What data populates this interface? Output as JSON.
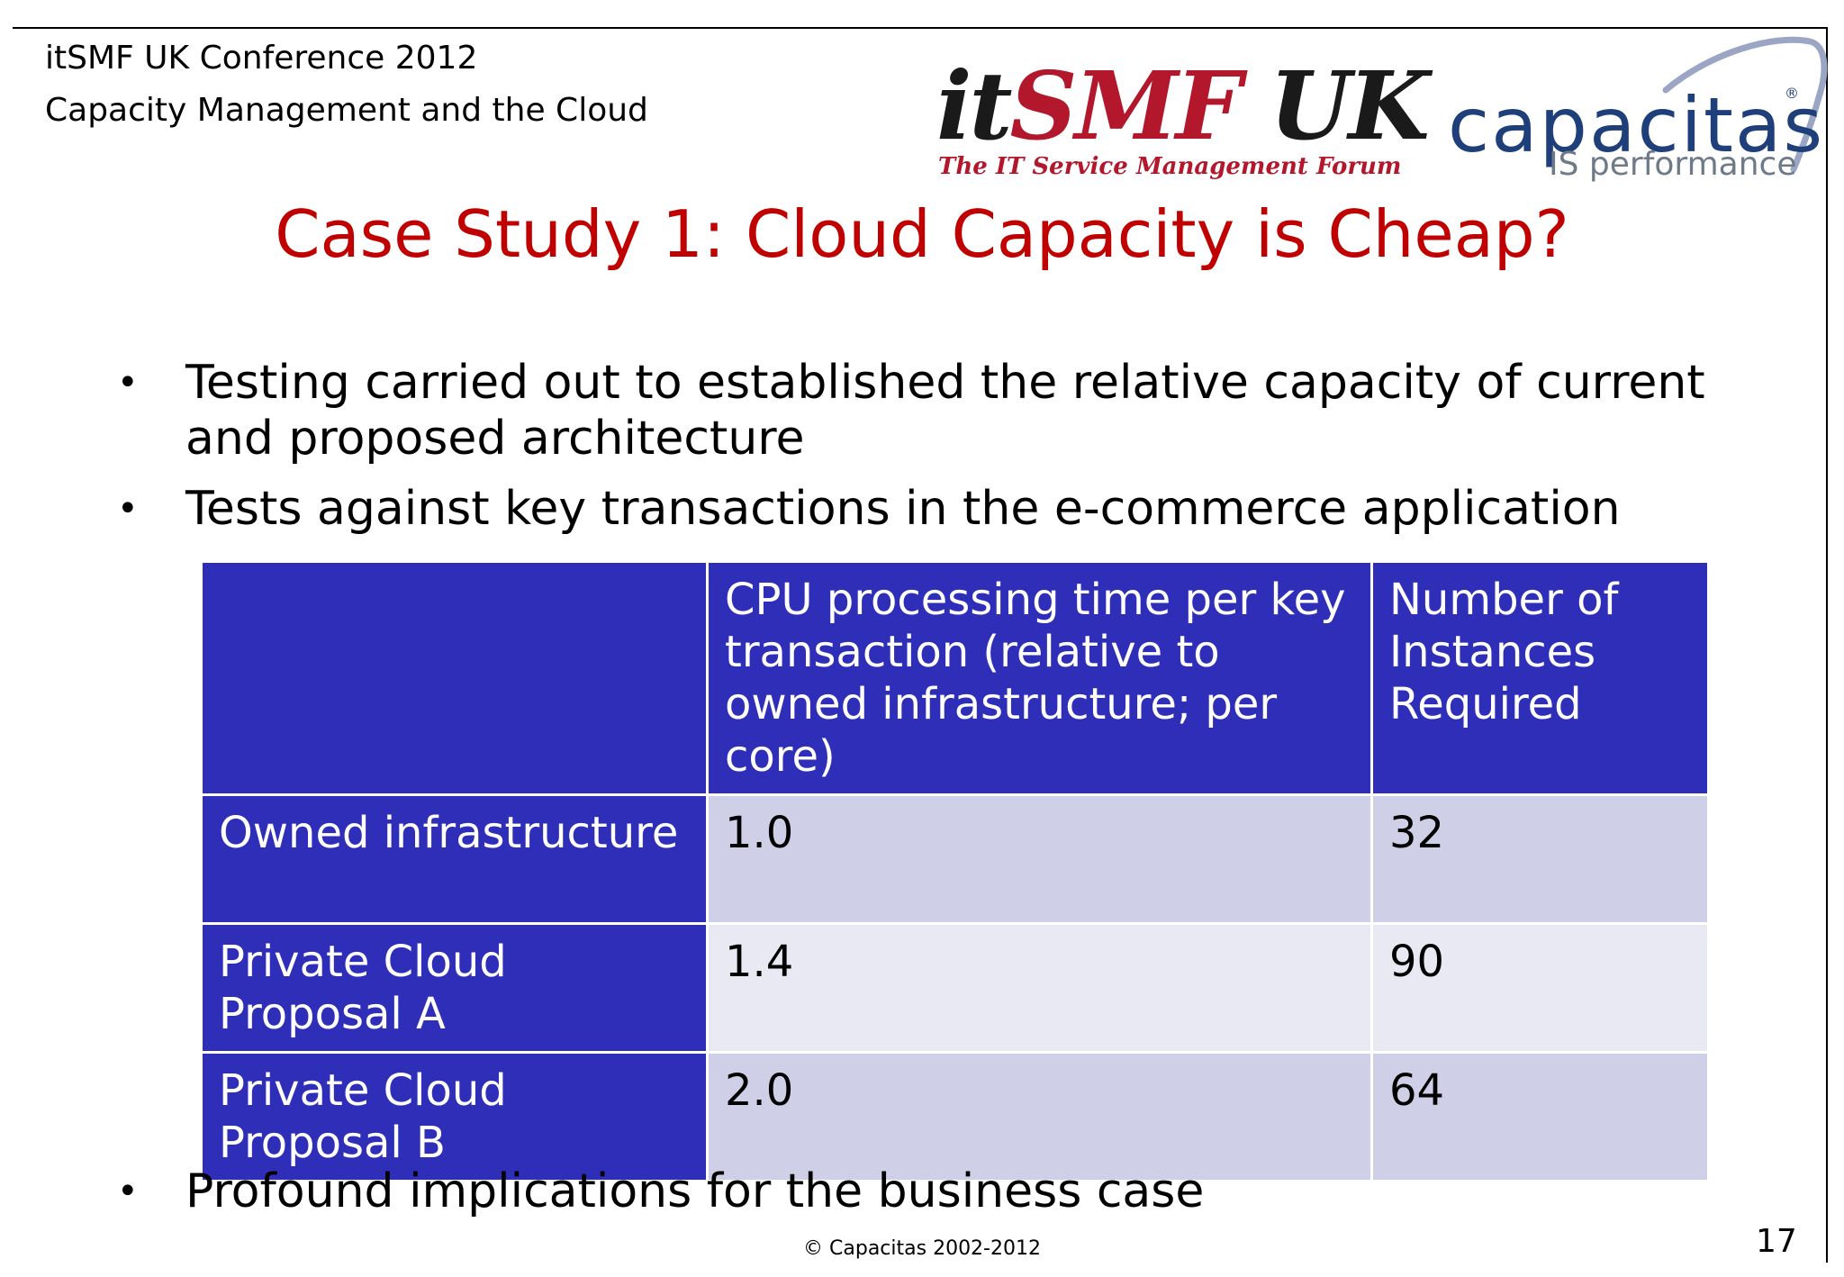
{
  "header": {
    "line1": "itSMF UK Conference 2012",
    "line2": "Capacity Management and the Cloud"
  },
  "logos": {
    "itsmf": {
      "main_dark_1": "it",
      "main_red": "SMF",
      "main_dark_2": " UK",
      "tagline": "The IT Service Management Forum"
    },
    "capacitas": {
      "word": "capacitas",
      "reg_mark": "®",
      "tagline": "IS performance"
    }
  },
  "title": "Case Study 1: Cloud Capacity is Cheap?",
  "bullets": [
    "Testing carried out to established the relative capacity of current and proposed architecture",
    "Tests against key transactions in the e-commerce application",
    "Profound implications for the business case"
  ],
  "bullet_symbol": "•",
  "table": {
    "headers": [
      "",
      "CPU processing time per key transaction (relative to owned infrastructure; per core)",
      "Number of Instances Required"
    ],
    "rows": [
      {
        "label": "Owned infrastructure",
        "cpu": "1.0",
        "instances": "32"
      },
      {
        "label": "Private Cloud Proposal A",
        "cpu": "1.4",
        "instances": "90"
      },
      {
        "label": "Private Cloud Proposal B",
        "cpu": "2.0",
        "instances": "64"
      }
    ]
  },
  "footer": {
    "copyright": "© Capacitas 2002-2012",
    "page_number": "17"
  },
  "colors": {
    "title": "#c00000",
    "table_header": "#2e2eb8",
    "row_shade_dark": "#cfcfe8",
    "row_shade_light": "#e9e9f4",
    "itsmf_red": "#b3172b",
    "capacitas_blue": "#1f3f7a"
  }
}
